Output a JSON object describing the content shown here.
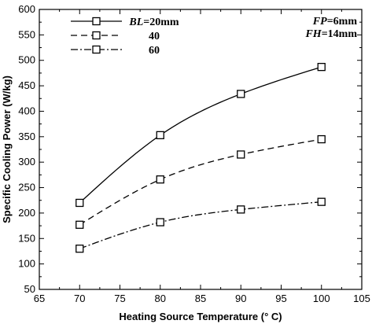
{
  "chart_data": {
    "type": "line",
    "xlabel": "Heating Source Temperature (° C)",
    "ylabel": "Specific Cooling Power (W/kg)",
    "xlim": [
      65,
      105
    ],
    "ylim": [
      50,
      600
    ],
    "xticks": [
      65,
      70,
      75,
      80,
      85,
      90,
      95,
      100,
      105
    ],
    "yticks": [
      50,
      100,
      150,
      200,
      250,
      300,
      350,
      400,
      450,
      500,
      550,
      600
    ],
    "grid": false,
    "legend_position": "top-left",
    "marker": "open-square",
    "series": [
      {
        "legend_var": "BL",
        "legend_value": "=20mm",
        "line_style": "solid",
        "x": [
          70,
          80,
          90,
          100
        ],
        "y": [
          220,
          353,
          434,
          487
        ]
      },
      {
        "legend_var": "",
        "legend_value": "40",
        "line_style": "dashed",
        "x": [
          70,
          80,
          90,
          100
        ],
        "y": [
          177,
          266,
          315,
          345
        ]
      },
      {
        "legend_var": "",
        "legend_value": "60",
        "line_style": "dashdot",
        "x": [
          70,
          80,
          90,
          100
        ],
        "y": [
          130,
          182,
          207,
          222
        ]
      }
    ],
    "annotations": [
      {
        "var": "FP",
        "value": "=6mm"
      },
      {
        "var": "FH",
        "value": "=14mm"
      }
    ]
  }
}
